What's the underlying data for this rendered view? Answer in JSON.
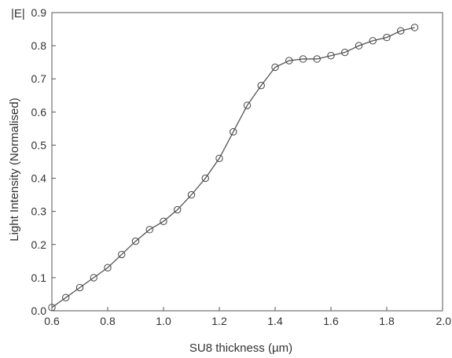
{
  "chart_data": {
    "type": "line",
    "title": "",
    "corner_label": "|E|",
    "xlabel": "SU8 thickness  (µm)",
    "ylabel": "Light Intensity (Normalised)",
    "xlim": [
      0.6,
      2.0
    ],
    "ylim": [
      0.0,
      0.9
    ],
    "x_ticks": [
      "0.6",
      "0.8",
      "1.0",
      "1.2",
      "1.4",
      "1.6",
      "1.8",
      "2.0"
    ],
    "y_ticks": [
      "0.0",
      "0.1",
      "0.2",
      "0.3",
      "0.4",
      "0.5",
      "0.6",
      "0.7",
      "0.8",
      "0.9"
    ],
    "grid": false,
    "legend": "none",
    "marker": "open-circle",
    "series": [
      {
        "x": [
          0.6,
          0.65,
          0.7,
          0.75,
          0.8,
          0.85,
          0.9,
          0.95,
          1.0,
          1.05,
          1.1,
          1.15,
          1.2,
          1.25,
          1.3,
          1.35,
          1.4,
          1.45,
          1.5,
          1.55,
          1.6,
          1.65,
          1.7,
          1.75,
          1.8,
          1.85,
          1.9
        ],
        "values": [
          0.01,
          0.04,
          0.07,
          0.1,
          0.13,
          0.17,
          0.21,
          0.245,
          0.27,
          0.305,
          0.35,
          0.4,
          0.46,
          0.54,
          0.62,
          0.68,
          0.735,
          0.755,
          0.76,
          0.76,
          0.77,
          0.78,
          0.8,
          0.815,
          0.825,
          0.845,
          0.855
        ]
      }
    ]
  }
}
